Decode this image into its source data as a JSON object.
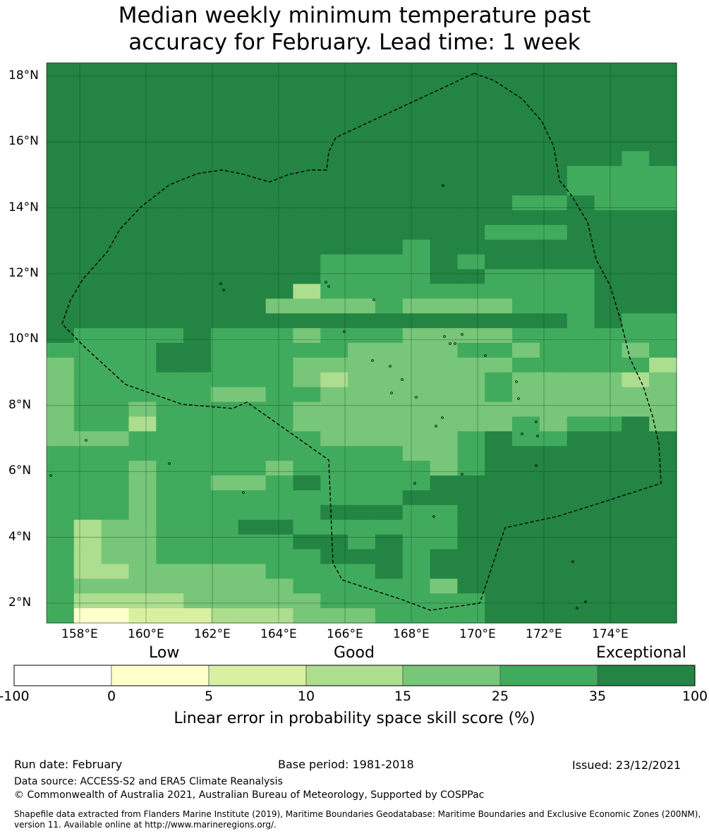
{
  "title": {
    "line1": "Median weekly minimum temperature past",
    "line2": "accuracy for February. Lead time: 1 week"
  },
  "map": {
    "lat_labels": [
      "18°N",
      "16°N",
      "14°N",
      "12°N",
      "10°N",
      "8°N",
      "6°N",
      "4°N",
      "2°N"
    ],
    "lon_labels": [
      "158°E",
      "160°E",
      "162°E",
      "164°E",
      "166°E",
      "168°E",
      "170°E",
      "172°E",
      "174°E"
    ],
    "grid_lat_range": [
      1.4,
      18.4
    ],
    "grid_lon_range": [
      157.0,
      176.0
    ],
    "boundary_name": "Marshall Islands EEZ"
  },
  "legend": {
    "category_labels": [
      "Low",
      "Good",
      "Exceptional"
    ],
    "tick_labels": [
      "-100",
      "0",
      "5",
      "10",
      "15",
      "25",
      "35",
      "100"
    ],
    "colors": [
      "#ffffff",
      "#ffffcc",
      "#d9f0a3",
      "#addd8e",
      "#78c679",
      "#41ab5d",
      "#238443"
    ],
    "title": "Linear error in probability space skill score (%)"
  },
  "footer": {
    "run_date": "Run date: February",
    "base_period": "Base period: 1981-2018",
    "issued": "Issued: 23/12/2021",
    "data_source": "Data source: ACCESS-S2 and ERA5 Climate Reanalysis",
    "copyright": "© Commonwealth of Australia 2021, Australian Bureau of Meteorology, Supported by COSPPac",
    "shapefile_line1": "Shapefile data extracted from Flanders Marine Institute (2019), Maritime Boundaries Geodatabase: Maritime Boundaries and Exclusive Economic Zones (200NM),",
    "shapefile_line2": "version 11. Available online at http://www.marineregions.org/."
  }
}
